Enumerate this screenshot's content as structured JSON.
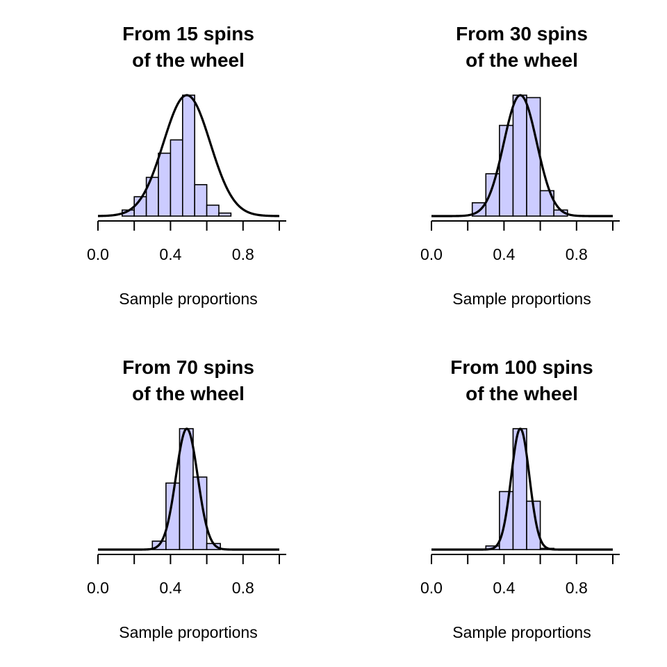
{
  "chart_data": [
    {
      "type": "bar",
      "title": [
        "From 15 spins",
        "of the wheel"
      ],
      "xlabel": "Sample proportions",
      "ylabel": "",
      "xlim": [
        0,
        1
      ],
      "xticks": [
        "0.0",
        "0.4",
        "0.8"
      ],
      "bin_width": 0.0667,
      "bins": [
        {
          "x0": 0.1333,
          "x1": 0.2,
          "height": 0.05
        },
        {
          "x0": 0.2,
          "x1": 0.2667,
          "height": 0.16
        },
        {
          "x0": 0.2667,
          "x1": 0.3333,
          "height": 0.32
        },
        {
          "x0": 0.3333,
          "x1": 0.4,
          "height": 0.52
        },
        {
          "x0": 0.4,
          "x1": 0.4667,
          "height": 0.63
        },
        {
          "x0": 0.4667,
          "x1": 0.5333,
          "height": 1.0
        },
        {
          "x0": 0.5333,
          "x1": 0.6,
          "height": 0.26
        },
        {
          "x0": 0.6,
          "x1": 0.6667,
          "height": 0.09
        },
        {
          "x0": 0.6667,
          "x1": 0.7333,
          "height": 0.025
        }
      ],
      "curve": {
        "type": "normal",
        "mean": 0.49,
        "sd": 0.129,
        "peak": 1.0
      },
      "grid": false
    },
    {
      "type": "bar",
      "title": [
        "From 30 spins",
        "of the wheel"
      ],
      "xlabel": "Sample proportions",
      "ylabel": "",
      "xlim": [
        0,
        1
      ],
      "xticks": [
        "0.0",
        "0.4",
        "0.8"
      ],
      "bin_width": 0.075,
      "bins": [
        {
          "x0": 0.225,
          "x1": 0.3,
          "height": 0.11
        },
        {
          "x0": 0.3,
          "x1": 0.375,
          "height": 0.35
        },
        {
          "x0": 0.375,
          "x1": 0.45,
          "height": 0.75
        },
        {
          "x0": 0.45,
          "x1": 0.525,
          "height": 1.0
        },
        {
          "x0": 0.525,
          "x1": 0.6,
          "height": 0.98
        },
        {
          "x0": 0.6,
          "x1": 0.675,
          "height": 0.21
        },
        {
          "x0": 0.675,
          "x1": 0.75,
          "height": 0.05
        }
      ],
      "curve": {
        "type": "normal",
        "mean": 0.49,
        "sd": 0.091,
        "peak": 1.0
      },
      "grid": false
    },
    {
      "type": "bar",
      "title": [
        "From 70 spins",
        "of the wheel"
      ],
      "xlabel": "Sample proportions",
      "ylabel": "",
      "xlim": [
        0,
        1
      ],
      "xticks": [
        "0.0",
        "0.4",
        "0.8"
      ],
      "bin_width": 0.075,
      "bins": [
        {
          "x0": 0.3,
          "x1": 0.375,
          "height": 0.07
        },
        {
          "x0": 0.375,
          "x1": 0.45,
          "height": 0.55
        },
        {
          "x0": 0.45,
          "x1": 0.525,
          "height": 1.0
        },
        {
          "x0": 0.525,
          "x1": 0.6,
          "height": 0.6
        },
        {
          "x0": 0.6,
          "x1": 0.675,
          "height": 0.05
        }
      ],
      "curve": {
        "type": "normal",
        "mean": 0.49,
        "sd": 0.06,
        "peak": 1.0
      },
      "grid": false
    },
    {
      "type": "bar",
      "title": [
        "From 100 spins",
        "of the wheel"
      ],
      "xlabel": "Sample proportions",
      "ylabel": "",
      "xlim": [
        0,
        1
      ],
      "xticks": [
        "0.0",
        "0.4",
        "0.8"
      ],
      "bin_width": 0.075,
      "bins": [
        {
          "x0": 0.3,
          "x1": 0.375,
          "height": 0.03
        },
        {
          "x0": 0.375,
          "x1": 0.45,
          "height": 0.48
        },
        {
          "x0": 0.45,
          "x1": 0.525,
          "height": 1.0
        },
        {
          "x0": 0.525,
          "x1": 0.6,
          "height": 0.4
        },
        {
          "x0": 0.6,
          "x1": 0.675,
          "height": 0.01
        }
      ],
      "curve": {
        "type": "normal",
        "mean": 0.49,
        "sd": 0.05,
        "peak": 1.0
      },
      "grid": false
    }
  ],
  "colors": {
    "bar_fill": "#ccccff",
    "bar_stroke": "#000000",
    "curve": "#000000"
  }
}
